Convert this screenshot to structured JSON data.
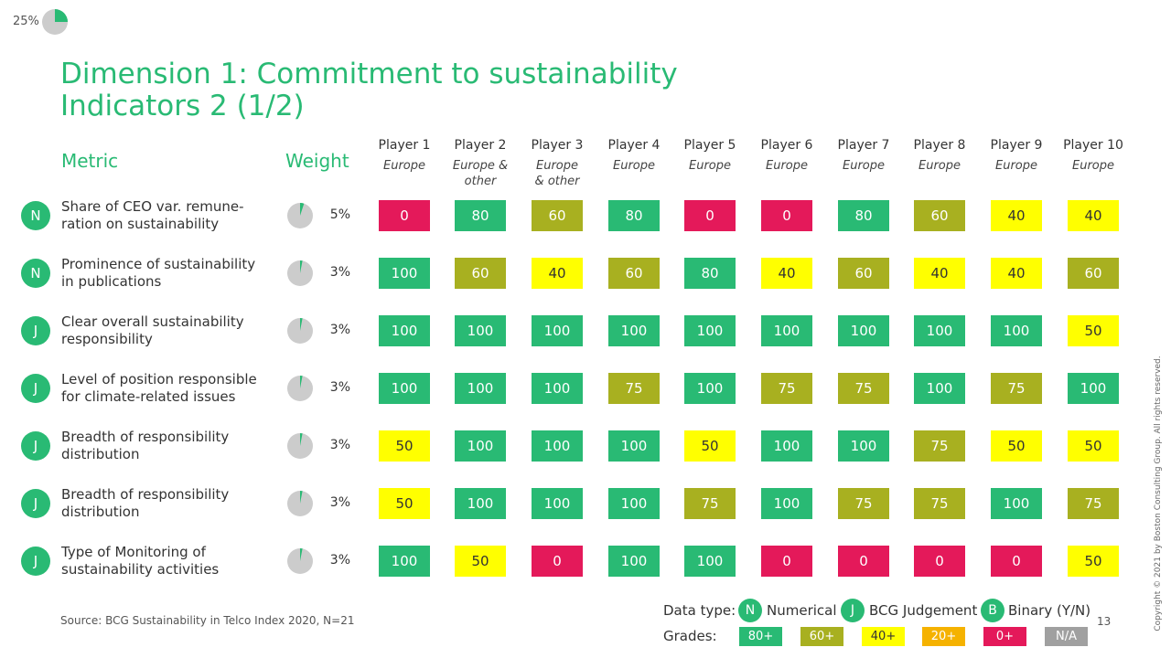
{
  "progress": {
    "label": "25%",
    "fraction": 0.25
  },
  "title": {
    "line1": "Dimension 1: Commitment to sustainability",
    "line2": "Indicators 2 (1/2)"
  },
  "headers": {
    "metric": "Metric",
    "weight": "Weight"
  },
  "players": [
    {
      "name": "Player 1",
      "region": "Europe"
    },
    {
      "name": "Player 2",
      "region": "Europe &\nother"
    },
    {
      "name": "Player 3",
      "region": "Europe\n& other"
    },
    {
      "name": "Player 4",
      "region": "Europe"
    },
    {
      "name": "Player 5",
      "region": "Europe"
    },
    {
      "name": "Player 6",
      "region": "Europe"
    },
    {
      "name": "Player 7",
      "region": "Europe"
    },
    {
      "name": "Player 8",
      "region": "Europe"
    },
    {
      "name": "Player 9",
      "region": "Europe"
    },
    {
      "name": "Player 10",
      "region": "Europe"
    }
  ],
  "rows": [
    {
      "type": "N",
      "metric": "Share of CEO var. remune-\nration on sustainability",
      "weight": "5%",
      "weight_fraction": 0.05,
      "scores": [
        "0",
        "80",
        "60",
        "80",
        "0",
        "0",
        "80",
        "60",
        "40",
        "40"
      ]
    },
    {
      "type": "N",
      "metric": "Prominence of sustainability\nin publications",
      "weight": "3%",
      "weight_fraction": 0.03,
      "scores": [
        "100",
        "60",
        "40",
        "60",
        "80",
        "40",
        "60",
        "40",
        "40",
        "60"
      ]
    },
    {
      "type": "J",
      "metric": "Clear overall sustainability\nresponsibility",
      "weight": "3%",
      "weight_fraction": 0.03,
      "scores": [
        "100",
        "100",
        "100",
        "100",
        "100",
        "100",
        "100",
        "100",
        "100",
        "50"
      ]
    },
    {
      "type": "J",
      "metric": "Level of position responsible\nfor climate-related issues",
      "weight": "3%",
      "weight_fraction": 0.03,
      "scores": [
        "100",
        "100",
        "100",
        "75",
        "100",
        "75",
        "75",
        "100",
        "75",
        "100"
      ]
    },
    {
      "type": "J",
      "metric": "Breadth of responsibility\ndistribution",
      "weight": "3%",
      "weight_fraction": 0.03,
      "scores": [
        "50",
        "100",
        "100",
        "100",
        "50",
        "100",
        "100",
        "75",
        "50",
        "50"
      ]
    },
    {
      "type": "J",
      "metric": "Breadth of responsibility\ndistribution",
      "weight": "3%",
      "weight_fraction": 0.03,
      "scores": [
        "50",
        "100",
        "100",
        "100",
        "75",
        "100",
        "75",
        "75",
        "100",
        "75"
      ]
    },
    {
      "type": "J",
      "metric": "Type of Monitoring  of\nsustainability activities",
      "weight": "3%",
      "weight_fraction": 0.03,
      "scores": [
        "100",
        "50",
        "0",
        "100",
        "100",
        "0",
        "0",
        "0",
        "0",
        "50"
      ]
    }
  ],
  "colors": {
    "accent": "#29BA74",
    "grade_80": "#29BA74",
    "grade_60": "#A8B020",
    "grade_40": "#FFFF00",
    "grade_20": "#F5B200",
    "grade_0": "#E4195A",
    "grade_na": "#A0A0A0",
    "pie_bg": "#CCCCCC"
  },
  "source": "Source: BCG Sustainability in Telco Index 2020, N=21",
  "legend": {
    "data_type_label": "Data type:",
    "data_types": [
      {
        "badge": "N",
        "label": "Numerical"
      },
      {
        "badge": "J",
        "label": "BCG Judgement"
      },
      {
        "badge": "B",
        "label": "Binary (Y/N)"
      }
    ],
    "grades_label": "Grades:",
    "grades": [
      "80+",
      "60+",
      "40+",
      "20+",
      "0+",
      "N/A"
    ]
  },
  "page_number": "13",
  "copyright": "Copyright © 2021 by Boston Consulting Group. All rights reserved."
}
